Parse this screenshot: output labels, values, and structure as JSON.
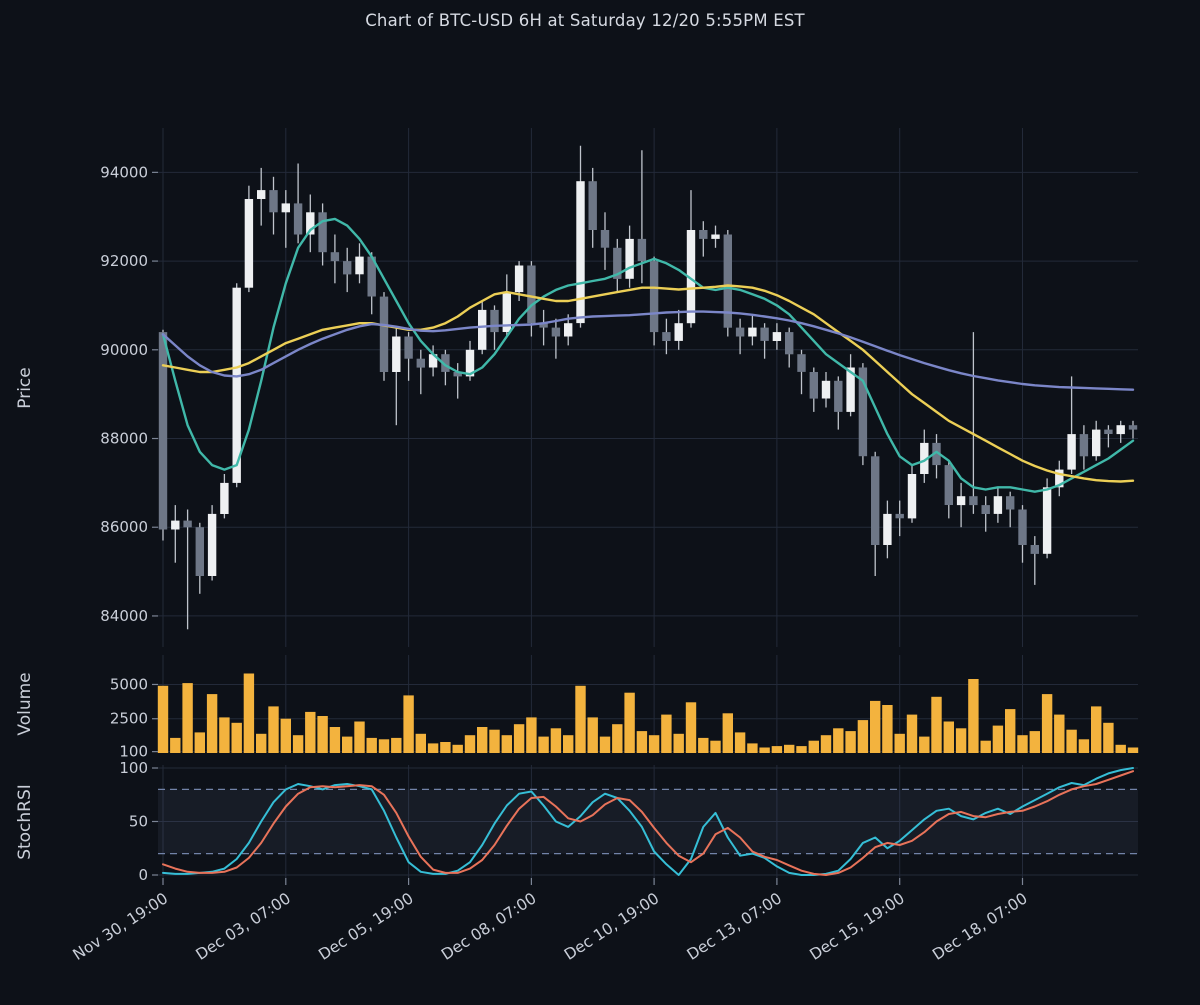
{
  "title": "Chart of BTC-USD 6H at Saturday 12/20 5:55PM EST",
  "x_axis": {
    "count": 80,
    "tick_indices": [
      0,
      10,
      20,
      30,
      40,
      50,
      60,
      70
    ],
    "tick_labels": [
      "Nov 30, 19:00",
      "Dec 03, 07:00",
      "Dec 05, 19:00",
      "Dec 08, 07:00",
      "Dec 10, 19:00",
      "Dec 13, 07:00",
      "Dec 15, 19:00",
      "Dec 18, 07:00"
    ]
  },
  "chart_data": [
    {
      "type": "candlestick",
      "name": "price",
      "ylabel": "Price",
      "yticks": [
        84000,
        86000,
        88000,
        90000,
        92000,
        94000
      ],
      "ylim": [
        83300,
        95000
      ],
      "open": [
        90400,
        85950,
        86150,
        86000,
        84900,
        86300,
        87000,
        91400,
        93400,
        93600,
        93100,
        93300,
        92600,
        93100,
        92200,
        92000,
        91700,
        92100,
        91200,
        89500,
        90300,
        89800,
        89600,
        89900,
        89500,
        89400,
        90000,
        90900,
        90400,
        91300,
        91900,
        90600,
        90500,
        90300,
        90600,
        93800,
        92700,
        92300,
        91600,
        92500,
        92000,
        90400,
        90200,
        90600,
        92700,
        92500,
        92600,
        90500,
        90300,
        90500,
        90200,
        90400,
        89900,
        89500,
        88900,
        89300,
        88600,
        89600,
        87600,
        85600,
        86300,
        86200,
        87200,
        87900,
        87400,
        86500,
        86700,
        86500,
        86300,
        86700,
        86400,
        85600,
        85400,
        86900,
        87300,
        88100,
        87600,
        88200,
        88100,
        88300
      ],
      "high": [
        90450,
        86500,
        86400,
        86100,
        86500,
        87200,
        91500,
        93700,
        94100,
        93900,
        93600,
        94200,
        93500,
        93300,
        92600,
        92300,
        92400,
        92200,
        91300,
        90500,
        90400,
        90000,
        90100,
        90000,
        89700,
        90200,
        91100,
        91000,
        91700,
        92000,
        92000,
        90900,
        90700,
        90800,
        94600,
        94100,
        93100,
        92500,
        92800,
        94500,
        92100,
        90700,
        90900,
        93600,
        92900,
        92800,
        92700,
        90700,
        90800,
        90600,
        90600,
        90500,
        90000,
        89600,
        89500,
        89400,
        89900,
        89700,
        87700,
        86600,
        86600,
        87400,
        88200,
        88100,
        87500,
        87000,
        90400,
        86700,
        86900,
        86800,
        86500,
        85800,
        87100,
        87500,
        89400,
        88300,
        88400,
        88300,
        88400,
        88400
      ],
      "low": [
        85700,
        85200,
        83700,
        84500,
        84800,
        86200,
        86900,
        91300,
        92800,
        92600,
        92300,
        92400,
        92200,
        91900,
        91500,
        91300,
        91500,
        90800,
        89300,
        88300,
        89300,
        89000,
        89400,
        89200,
        88900,
        89300,
        89900,
        90000,
        90300,
        91100,
        90300,
        90100,
        89800,
        90100,
        90500,
        92300,
        91800,
        91300,
        91400,
        91500,
        90100,
        89900,
        90000,
        90500,
        92100,
        92300,
        90300,
        89900,
        90100,
        89800,
        90000,
        89600,
        89000,
        88600,
        88700,
        88200,
        88500,
        87400,
        84900,
        85300,
        85800,
        86100,
        87000,
        87100,
        86200,
        86000,
        86300,
        85900,
        86100,
        86000,
        85200,
        84700,
        85300,
        86700,
        87200,
        87300,
        87500,
        87800,
        87900,
        88000
      ],
      "close": [
        85950,
        86150,
        86000,
        84900,
        86300,
        87000,
        91400,
        93400,
        93600,
        93100,
        93300,
        92600,
        93100,
        92200,
        92000,
        91700,
        92100,
        91200,
        89500,
        90300,
        89800,
        89600,
        89900,
        89500,
        89400,
        90000,
        90900,
        90400,
        91300,
        91900,
        90600,
        90500,
        90300,
        90600,
        93800,
        92700,
        92300,
        91600,
        92500,
        92000,
        90400,
        90200,
        90600,
        92700,
        92500,
        92600,
        90500,
        90300,
        90500,
        90200,
        90400,
        89900,
        89500,
        88900,
        89300,
        88600,
        89600,
        87600,
        85600,
        86300,
        86200,
        87200,
        87900,
        87400,
        86500,
        86700,
        86500,
        86300,
        86700,
        86400,
        85600,
        85400,
        86900,
        87300,
        88100,
        87600,
        88200,
        88100,
        88300,
        88200
      ],
      "overlays": [
        {
          "name": "mav-fast-line",
          "color": "#40b8a9",
          "values": [
            90350,
            89300,
            88300,
            87700,
            87400,
            87300,
            87400,
            88200,
            89300,
            90500,
            91500,
            92300,
            92700,
            92900,
            92950,
            92800,
            92500,
            92100,
            91600,
            91100,
            90600,
            90200,
            89900,
            89650,
            89500,
            89450,
            89600,
            89900,
            90300,
            90700,
            91000,
            91200,
            91350,
            91450,
            91500,
            91550,
            91600,
            91700,
            91850,
            91950,
            92050,
            91950,
            91800,
            91600,
            91400,
            91350,
            91400,
            91350,
            91250,
            91150,
            91000,
            90800,
            90500,
            90200,
            89900,
            89700,
            89500,
            89300,
            88700,
            88100,
            87600,
            87400,
            87500,
            87700,
            87500,
            87100,
            86900,
            86850,
            86900,
            86900,
            86850,
            86800,
            86850,
            86950,
            87100,
            87250,
            87400,
            87550,
            87750,
            87950
          ]
        },
        {
          "name": "mav-mid-line",
          "color": "#eccf56",
          "values": [
            89650,
            89600,
            89550,
            89500,
            89500,
            89550,
            89600,
            89700,
            89850,
            90000,
            90150,
            90250,
            90350,
            90450,
            90500,
            90550,
            90600,
            90600,
            90550,
            90500,
            90450,
            90450,
            90500,
            90600,
            90750,
            90950,
            91100,
            91250,
            91300,
            91250,
            91200,
            91150,
            91100,
            91100,
            91150,
            91200,
            91250,
            91300,
            91350,
            91400,
            91400,
            91380,
            91360,
            91380,
            91400,
            91420,
            91450,
            91430,
            91400,
            91330,
            91230,
            91100,
            90950,
            90800,
            90600,
            90400,
            90200,
            90000,
            89750,
            89500,
            89250,
            89000,
            88800,
            88600,
            88400,
            88250,
            88100,
            87950,
            87800,
            87650,
            87500,
            87380,
            87280,
            87200,
            87150,
            87100,
            87060,
            87040,
            87030,
            87050
          ]
        },
        {
          "name": "mav-slow-line",
          "color": "#7b86c8",
          "values": [
            90350,
            90100,
            89850,
            89650,
            89500,
            89420,
            89400,
            89450,
            89550,
            89700,
            89850,
            90000,
            90130,
            90250,
            90350,
            90450,
            90530,
            90580,
            90560,
            90520,
            90470,
            90430,
            90420,
            90440,
            90470,
            90500,
            90520,
            90540,
            90550,
            90560,
            90570,
            90600,
            90650,
            90700,
            90730,
            90750,
            90760,
            90770,
            90780,
            90800,
            90820,
            90840,
            90850,
            90860,
            90860,
            90850,
            90840,
            90820,
            90790,
            90750,
            90710,
            90660,
            90600,
            90530,
            90450,
            90370,
            90280,
            90180,
            90080,
            89980,
            89880,
            89790,
            89700,
            89620,
            89540,
            89470,
            89410,
            89360,
            89310,
            89270,
            89230,
            89200,
            89180,
            89160,
            89150,
            89140,
            89130,
            89120,
            89110,
            89100
          ]
        }
      ]
    },
    {
      "type": "bar",
      "name": "volume",
      "ylabel": "Volume",
      "yticks": [
        100,
        2500,
        5000
      ],
      "ylim": [
        0,
        7150
      ],
      "color": "#f3b33e",
      "values": [
        4900,
        1100,
        5100,
        1500,
        4300,
        2600,
        2200,
        5800,
        1400,
        3400,
        2500,
        1300,
        3000,
        2700,
        1900,
        1200,
        2300,
        1100,
        1000,
        1100,
        4200,
        1400,
        700,
        800,
        600,
        1300,
        1900,
        1700,
        1300,
        2100,
        2600,
        1200,
        1800,
        1300,
        4900,
        2600,
        1200,
        2100,
        4400,
        1600,
        1300,
        2800,
        1400,
        3700,
        1100,
        900,
        2900,
        1500,
        700,
        400,
        500,
        600,
        500,
        900,
        1300,
        1800,
        1600,
        2400,
        3800,
        3500,
        1400,
        2800,
        1200,
        4100,
        2300,
        1800,
        5400,
        900,
        2000,
        3200,
        1300,
        1600,
        4300,
        2800,
        1700,
        1000,
        3400,
        2200,
        600,
        400
      ]
    },
    {
      "type": "line",
      "name": "stochrsi",
      "ylabel": "StochRSI",
      "yticks": [
        0,
        50,
        100
      ],
      "ylim": [
        0,
        100
      ],
      "band": [
        20,
        80
      ],
      "series": [
        {
          "name": "stochrsi-k-line",
          "color": "#36bed6",
          "values": [
            2,
            1,
            1,
            2,
            3,
            6,
            15,
            30,
            50,
            68,
            80,
            85,
            83,
            80,
            84,
            85,
            83,
            80,
            60,
            35,
            12,
            3,
            1,
            1,
            4,
            12,
            28,
            48,
            65,
            76,
            78,
            65,
            50,
            45,
            55,
            68,
            76,
            72,
            60,
            45,
            22,
            10,
            0,
            15,
            45,
            58,
            35,
            18,
            20,
            16,
            8,
            2,
            0,
            0,
            1,
            4,
            15,
            30,
            35,
            25,
            32,
            42,
            52,
            60,
            62,
            55,
            52,
            58,
            62,
            57,
            64,
            70,
            76,
            82,
            86,
            84,
            90,
            95,
            98,
            100
          ]
        },
        {
          "name": "stochrsi-d-line",
          "color": "#e8735a",
          "values": [
            10,
            6,
            3,
            2,
            2,
            3,
            7,
            16,
            30,
            48,
            64,
            76,
            82,
            83,
            82,
            83,
            84,
            83,
            75,
            58,
            36,
            17,
            5,
            2,
            2,
            6,
            14,
            28,
            46,
            62,
            72,
            73,
            64,
            53,
            50,
            56,
            66,
            72,
            70,
            59,
            44,
            30,
            18,
            12,
            20,
            38,
            44,
            35,
            22,
            17,
            14,
            9,
            4,
            1,
            0,
            2,
            7,
            16,
            26,
            30,
            28,
            32,
            40,
            50,
            57,
            59,
            55,
            54,
            57,
            59,
            60,
            64,
            69,
            75,
            80,
            83,
            85,
            89,
            93,
            97
          ]
        }
      ]
    }
  ],
  "colors": {
    "background": "#0d1118",
    "grid": "#232a39",
    "text": "#c9ced8",
    "tick": "#7c8596",
    "candle_up": "#eef0f2",
    "candle_down": "#6e7787",
    "wick": "#bfc4cc",
    "dashed": "#7283a8",
    "band": "rgba(114,131,168,0.10)"
  }
}
